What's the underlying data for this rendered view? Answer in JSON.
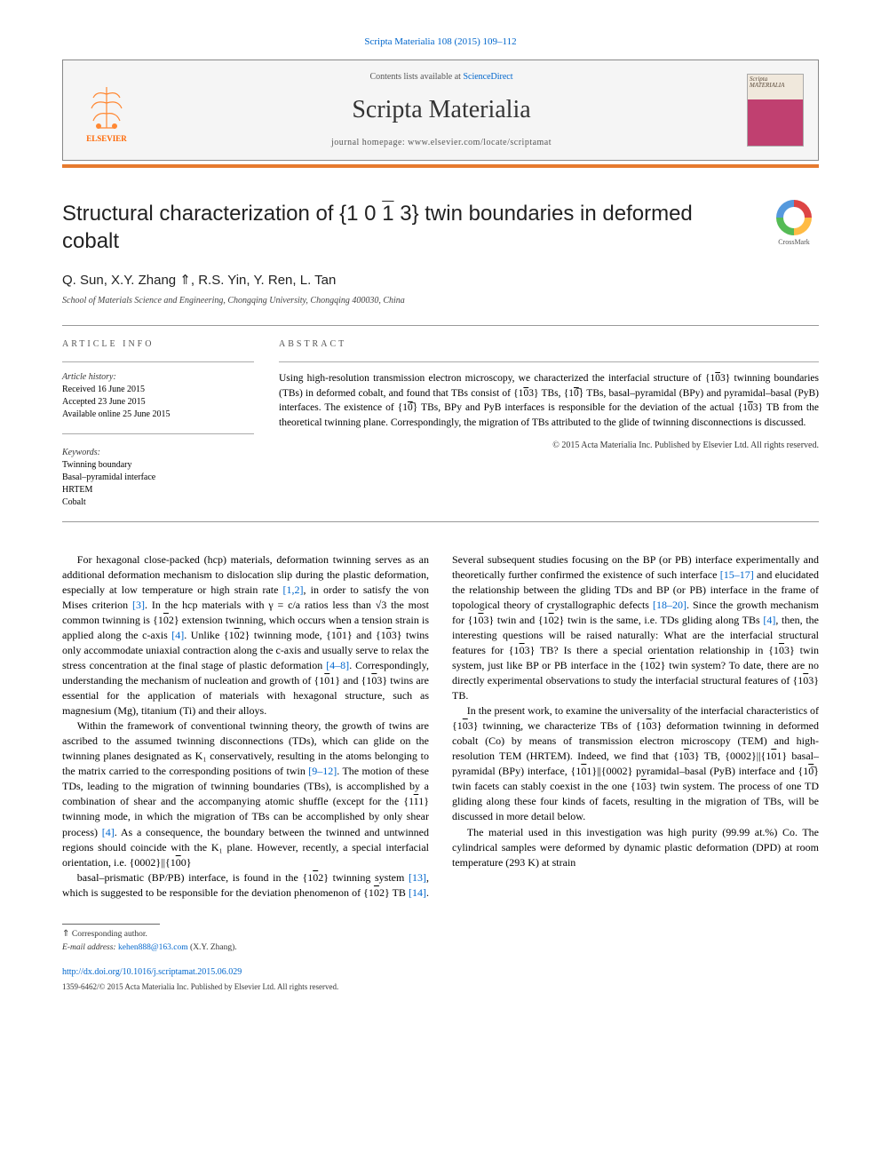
{
  "header": {
    "citation": "Scripta Materialia 108 (2015) 109–112",
    "contents_prefix": "Contents lists available at ",
    "contents_link": "ScienceDirect",
    "journal_name": "Scripta Materialia",
    "homepage_prefix": "journal homepage: ",
    "homepage_url": "www.elsevier.com/locate/scriptamat",
    "publisher_name": "ELSEVIER",
    "cover_title": "Scripta MATERIALIA"
  },
  "crossmark_label": "CrossMark",
  "title_parts": {
    "pre": "Structural characterization of {1 0 ",
    "bar": "1",
    "post": " 3} twin boundaries in deformed cobalt"
  },
  "authors_line": "Q. Sun, X.Y. Zhang ⇑, R.S. Yin, Y. Ren, L. Tan",
  "affiliation": "School of Materials Science and Engineering, Chongqing University, Chongqing 400030, China",
  "info": {
    "label": "article info",
    "history_label": "Article history:",
    "received": "Received 16 June 2015",
    "accepted": "Accepted 23 June 2015",
    "online": "Available online 25 June 2015",
    "keywords_label": "Keywords:",
    "keywords": [
      "Twinning boundary",
      "Basal–pyramidal interface",
      "HRTEM",
      "Cobalt"
    ]
  },
  "abstract": {
    "label": "abstract",
    "text": "Using high-resolution transmission electron microscopy, we characterized the interfacial structure of {10̅3} twinning boundaries (TBs) in deformed cobalt, and found that TBs consist of {10̅3} TBs, {10̅̅} TBs, basal–pyramidal (BPy) and pyramidal–basal (PyB) interfaces. The existence of {10̅̅} TBs, BPy and PyB interfaces is responsible for the deviation of the actual {10̅3} TB from the theoretical twinning plane. Correspondingly, the migration of TBs attributed to the glide of twinning disconnections is discussed.",
    "copyright": "© 2015 Acta Materialia Inc. Published by Elsevier Ltd. All rights reserved."
  },
  "body": {
    "p1": "For hexagonal close-packed (hcp) materials, deformation twinning serves as an additional deformation mechanism to dislocation slip during the plastic deformation, especially at low temperature or high strain rate [1,2], in order to satisfy the von Mises criterion [3]. In the hcp materials with γ = c/a ratios less than √3 the most common twinning is {10̅2} extension twinning, which occurs when a tension strain is applied along the c-axis [4]. Unlike {10̅2} twinning mode, {10̅1} and {10̅3} twins only accommodate uniaxial contraction along the c-axis and usually serve to relax the stress concentration at the final stage of plastic deformation [4–8]. Correspondingly, understanding the mechanism of nucleation and growth of {10̅1} and {10̅3} twins are essential for the application of materials with hexagonal structure, such as magnesium (Mg), titanium (Ti) and their alloys.",
    "p2": "Within the framework of conventional twinning theory, the growth of twins are ascribed to the assumed twinning disconnections (TDs), which can glide on the twinning planes designated as K₁ conservatively, resulting in the atoms belonging to the matrix carried to the corresponding positions of twin [9–12]. The motion of these TDs, leading to the migration of twinning boundaries (TBs), is accomplished by a combination of shear and the accompanying atomic shuffle (except for the {11̅1} twinning mode, in which the migration of TBs can be accomplished by only shear process) [4]. As a consequence, the boundary between the twinned and untwinned regions should coincide with the K₁ plane. However, recently, a special interfacial orientation, i.e. {0002}||{10̅0}",
    "p3": "basal–prismatic (BP/PB) interface, is found in the {10̅2} twinning system [13], which is suggested to be responsible for the deviation phenomenon of {10̅2} TB [14]. Several subsequent studies focusing on the BP (or PB) interface experimentally and theoretically further confirmed the existence of such interface [15–17] and elucidated the relationship between the gliding TDs and BP (or PB) interface in the frame of topological theory of crystallographic defects [18–20]. Since the growth mechanism for {10̅3} twin and {10̅2} twin is the same, i.e. TDs gliding along TBs [4], then, the interesting questions will be raised naturally: What are the interfacial structural features for {10̅3} TB? Is there a special orientation relationship in {10̅3} twin system, just like BP or PB interface in the {10̅2} twin system? To date, there are no directly experimental observations to study the interfacial structural features of {10̅3} TB.",
    "p4": "In the present work, to examine the universality of the interfacial characteristics of {10̅3} twinning, we characterize TBs of {10̅3} deformation twinning in deformed cobalt (Co) by means of transmission electron microscopy (TEM) and high-resolution TEM (HRTEM). Indeed, we find that {10̅3} TB, {0002}||{10̅1} basal–pyramidal (BPy) interface, {10̅1}||{0002} pyramidal–basal (PyB) interface and {10̅̅} twin facets can stably coexist in the one {10̅3} twin system. The process of one TD gliding along these four kinds of facets, resulting in the migration of TBs, will be discussed in more detail below.",
    "p5": "The material used in this investigation was high purity (99.99 at.%) Co. The cylindrical samples were deformed by dynamic plastic deformation (DPD) at room temperature (293 K) at strain"
  },
  "footer": {
    "corr_label": "Corresponding author.",
    "email_label": "E-mail address:",
    "email": "kehen888@163.com",
    "email_person": "(X.Y. Zhang).",
    "doi": "http://dx.doi.org/10.1016/j.scriptamat.2015.06.029",
    "issn": "1359-6462/© 2015 Acta Materialia Inc. Published by Elsevier Ltd. All rights reserved."
  },
  "colors": {
    "link": "#0066cc",
    "accent": "#e67a2e",
    "elsevier": "#ff6600"
  }
}
